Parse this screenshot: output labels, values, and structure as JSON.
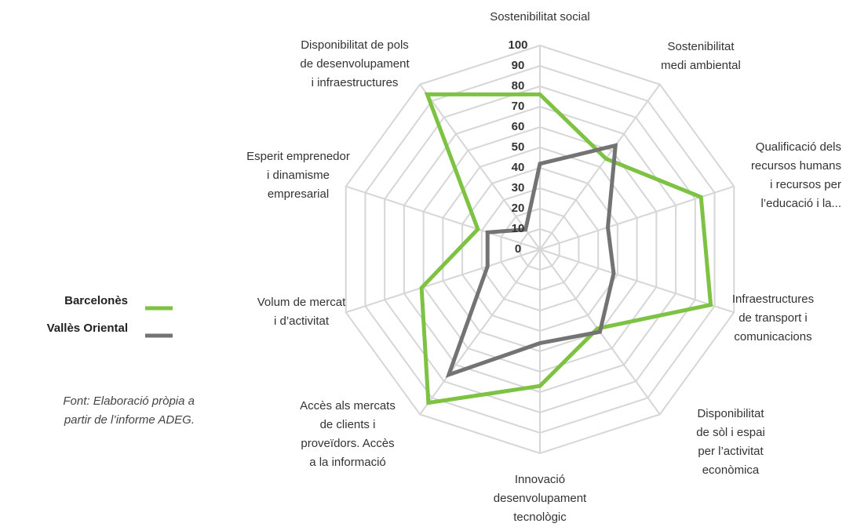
{
  "chart_data": {
    "type": "radar",
    "categories": [
      "Sostenibilitat social",
      "Sostenibilitat\nmedi ambiental",
      "Qualificació dels\nrecursos humans\ni recursos per\nl’educació i la...",
      "Infraestructures\nde transport i\ncomunicacions",
      "Disponibilitat\nde sòl i espai\nper l’activitat\neconòmica",
      "Innovació\ndesenvolupament\ntecnològic",
      "Accès als mercats\nde clients i\nproveïdors. Accès\na la informació",
      "Volum de mercat\ni d’activitat",
      "Esperit emprenedor\ni dinamisme\nempresarial",
      "Disponibilitat de pols\nde desenvolupament\ni infraestructures"
    ],
    "series": [
      {
        "name": "Barcelonès",
        "color": "#7dc242",
        "values": [
          76,
          55,
          83,
          88,
          48,
          67,
          93,
          61,
          32,
          94
        ]
      },
      {
        "name": "Vallès Oriental",
        "color": "#737373",
        "values": [
          42,
          63,
          35,
          38,
          50,
          46,
          76,
          27,
          27,
          12
        ]
      }
    ],
    "ylim": [
      0,
      100
    ],
    "yticks": [
      0,
      10,
      20,
      30,
      40,
      50,
      60,
      70,
      80,
      90,
      100
    ],
    "grid": true,
    "legend": "left",
    "note": "Font: Elaboració pròpia a\npartir de l’informe ADEG."
  }
}
